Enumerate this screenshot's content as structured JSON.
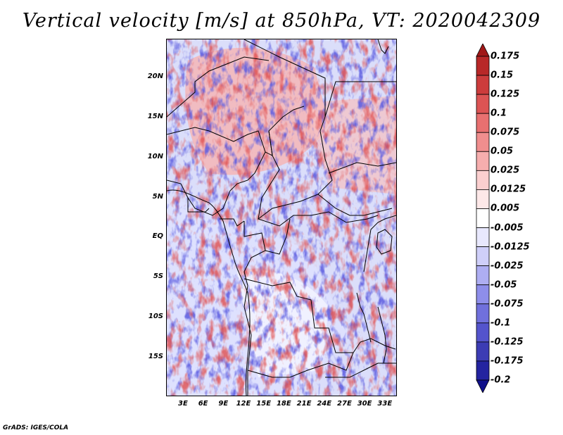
{
  "title": "Vertical velocity [m/s] at 850hPa, VT: 2020042309",
  "footer": "GrADS: IGES/COLA",
  "axes": {
    "y_ticks": [
      "20N",
      "15N",
      "10N",
      "5N",
      "EQ",
      "5S",
      "10S",
      "15S"
    ],
    "y_values": [
      20,
      15,
      10,
      5,
      0,
      -5,
      -10,
      -15
    ],
    "x_ticks": [
      "3E",
      "6E",
      "9E",
      "12E",
      "15E",
      "18E",
      "21E",
      "24E",
      "27E",
      "30E",
      "33E"
    ],
    "x_values": [
      3,
      6,
      9,
      12,
      15,
      18,
      21,
      24,
      27,
      30,
      33
    ],
    "lon_range": [
      0.5,
      34.8
    ],
    "lat_range": [
      -19.8,
      24.8
    ]
  },
  "colorbar": {
    "labels": [
      "0.175",
      "0.15",
      "0.125",
      "0.1",
      "0.075",
      "0.05",
      "0.025",
      "0.0125",
      "0.005",
      "-0.005",
      "-0.0125",
      "-0.025",
      "-0.05",
      "-0.075",
      "-0.1",
      "-0.125",
      "-0.175",
      "-0.2"
    ],
    "colors": [
      "#a01818",
      "#b82828",
      "#cc3c3c",
      "#dc5454",
      "#e87070",
      "#f08e8e",
      "#f6aeae",
      "#fbcfcf",
      "#fde8e8",
      "#ffffff",
      "#e8e8fd",
      "#cfcff9",
      "#aeaef2",
      "#8e8eea",
      "#7070dc",
      "#5454cc",
      "#3c3cb4",
      "#2424a0",
      "#10108a"
    ]
  },
  "colors": {
    "positive": "#d83a3a",
    "negative": "#5050d0",
    "neutral": "#ffffff",
    "border": "#000000"
  }
}
